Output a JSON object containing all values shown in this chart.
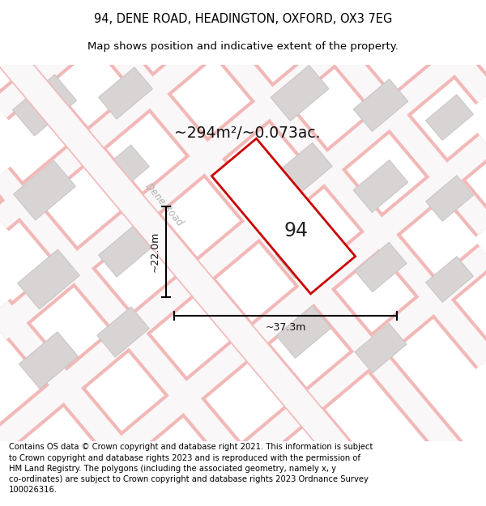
{
  "title": "94, DENE ROAD, HEADINGTON, OXFORD, OX3 7EG",
  "subtitle": "Map shows position and indicative extent of the property.",
  "area_label": "~294m²/~0.073ac.",
  "plot_number": "94",
  "dim_width": "~37.3m",
  "dim_height": "~22.0m",
  "footer": "Contains OS data © Crown copyright and database right 2021. This information is subject to Crown copyright and database rights 2023 and is reproduced with the permission of HM Land Registry. The polygons (including the associated geometry, namely x, y co-ordinates) are subject to Crown copyright and database rights 2023 Ordnance Survey 100026316.",
  "road_label": "Dene Road",
  "title_fontsize": 10.5,
  "subtitle_fontsize": 9.5,
  "footer_fontsize": 7.2,
  "map_bg": "#eeecec",
  "road_white": "#f9f7f7",
  "stripe_color": "#f2b8b8",
  "block_color": "#d8d4d4",
  "block_edge": "#c8c4c4",
  "plot_fill": "#ffffff",
  "plot_edge": "#cc0000"
}
